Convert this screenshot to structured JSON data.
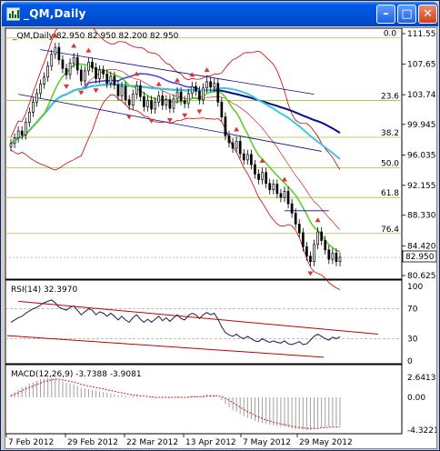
{
  "window": {
    "title": "_QM,Daily",
    "minimize_glyph": "–",
    "maximize_glyph": "□",
    "close_glyph": "✕"
  },
  "main": {
    "header": "_QM,Daily  82.950 82.950 82.200 82.950",
    "price_axis": [
      "111.550",
      "107.655",
      "103.740",
      "99.945",
      "96.035",
      "92.155",
      "88.330",
      "84.420",
      "80.625"
    ],
    "current_price": "82.950",
    "fib_labels": [
      "0.0",
      "23.6",
      "38.2",
      "50.0",
      "61.8",
      "76.4"
    ],
    "fib_levels": [
      111.0,
      103.0,
      98.3,
      94.4,
      90.6,
      86.0
    ]
  },
  "rsi": {
    "header": "RSI(14) 32.3970",
    "axis": [
      "100",
      "70",
      "30",
      "0"
    ]
  },
  "macd": {
    "header": "MACD(12,26,9) -3.7388 -3.9081",
    "axis": [
      "2.6413",
      "0.00",
      "-4.3221"
    ]
  },
  "x_axis": [
    "7 Feb 2012",
    "29 Feb 2012",
    "22 Mar 2012",
    "13 Apr 2012",
    "7 May 2012",
    "29 May 2012"
  ],
  "colors": {
    "candle": "#000000",
    "bollinger": "#cc0000",
    "ma_fast": "#5fd02a",
    "ma_mid": "#4a4ad8",
    "ma_slow_cyan": "#40c8e0",
    "ma_slow_navy": "#0a0a90",
    "fractal": "#e03030",
    "fib": "#a0c040",
    "rsi_line": "#1a1a50",
    "macd_hist": "#a0a0a0",
    "macd_signal": "#d02020"
  },
  "chart_data": [
    {
      "type": "candlestick",
      "title": "_QM,Daily",
      "header_values": {
        "open": 82.95,
        "high": 82.95,
        "low": 82.2,
        "close": 82.95
      },
      "x_ticks": [
        "7 Feb 2012",
        "29 Feb 2012",
        "22 Mar 2012",
        "13 Apr 2012",
        "7 May 2012",
        "29 May 2012"
      ],
      "ylim": [
        80.625,
        111.55
      ],
      "y_ticks": [
        111.55,
        107.655,
        103.74,
        99.945,
        96.035,
        92.155,
        88.33,
        84.42,
        80.625
      ],
      "fib_retracement": {
        "labels": [
          "0.0",
          "23.6",
          "38.2",
          "50.0",
          "61.8",
          "76.4"
        ],
        "levels": [
          111.0,
          103.0,
          98.3,
          94.4,
          90.6,
          86.0
        ]
      },
      "close": [
        97.5,
        98.2,
        99.1,
        98.6,
        100.2,
        101.5,
        102.8,
        103.9,
        105.1,
        106.0,
        107.4,
        108.9,
        109.8,
        108.2,
        107.1,
        106.3,
        107.8,
        108.5,
        106.9,
        105.5,
        106.8,
        107.9,
        107.2,
        105.8,
        106.9,
        106.4,
        105.2,
        106.1,
        105.0,
        103.6,
        104.8,
        103.1,
        102.4,
        103.8,
        104.9,
        103.5,
        102.2,
        103.0,
        101.9,
        102.8,
        103.6,
        102.4,
        103.1,
        102.0,
        103.2,
        104.1,
        103.0,
        102.6,
        103.9,
        104.8,
        104.2,
        103.1,
        104.6,
        105.4,
        104.7,
        105.2,
        102.8,
        100.9,
        98.5,
        97.6,
        96.9,
        97.8,
        96.2,
        95.4,
        96.1,
        94.8,
        93.6,
        92.9,
        93.8,
        92.4,
        91.6,
        92.3,
        91.1,
        90.6,
        91.4,
        89.8,
        88.6,
        87.2,
        86.1,
        84.3,
        83.1,
        82.4,
        84.6,
        86.2,
        85.1,
        83.9,
        82.7,
        83.5,
        82.4,
        82.95
      ],
      "current": 82.95
    },
    {
      "type": "line",
      "title": "RSI(14) 32.3970",
      "ylim": [
        0,
        100
      ],
      "y_ticks": [
        100,
        70,
        30,
        0
      ],
      "values": [
        52,
        55,
        58,
        60,
        64,
        67,
        70,
        72,
        75,
        78,
        80,
        82,
        78,
        72,
        70,
        68,
        72,
        74,
        68,
        62,
        66,
        70,
        68,
        62,
        66,
        64,
        60,
        64,
        60,
        55,
        60,
        55,
        52,
        58,
        62,
        56,
        52,
        56,
        52,
        56,
        60,
        54,
        58,
        53,
        58,
        62,
        57,
        55,
        61,
        64,
        62,
        57,
        62,
        65,
        62,
        64,
        56,
        46,
        38,
        35,
        33,
        36,
        32,
        30,
        33,
        30,
        27,
        26,
        30,
        27,
        25,
        27,
        25,
        24,
        27,
        23,
        22,
        24,
        26,
        22,
        23,
        28,
        33,
        36,
        33,
        30,
        28,
        32,
        30,
        32.4
      ],
      "current": 32.397
    },
    {
      "type": "bar",
      "title": "MACD(12,26,9) -3.7388 -3.9081",
      "ylim": [
        -4.3221,
        2.6413
      ],
      "y_ticks": [
        2.6413,
        0.0,
        -4.3221
      ],
      "histogram": [
        0.4,
        0.7,
        1.0,
        1.3,
        1.5,
        1.8,
        2.0,
        2.2,
        2.4,
        2.5,
        2.6,
        2.6,
        2.5,
        2.3,
        2.1,
        1.9,
        1.8,
        1.7,
        1.5,
        1.3,
        1.2,
        1.1,
        1.0,
        0.9,
        0.8,
        0.7,
        0.6,
        0.5,
        0.4,
        0.3,
        0.3,
        0.2,
        0.1,
        0.1,
        0.2,
        0.1,
        0.0,
        0.0,
        -0.1,
        -0.1,
        0.0,
        -0.1,
        0.0,
        -0.1,
        0.0,
        0.1,
        0.1,
        0.0,
        0.1,
        0.2,
        0.2,
        0.1,
        0.2,
        0.3,
        0.3,
        0.3,
        0.0,
        -0.4,
        -0.9,
        -1.3,
        -1.7,
        -1.9,
        -2.2,
        -2.5,
        -2.7,
        -2.9,
        -3.1,
        -3.3,
        -3.4,
        -3.5,
        -3.6,
        -3.7,
        -3.8,
        -3.9,
        -3.9,
        -4.0,
        -4.1,
        -4.2,
        -4.2,
        -4.3,
        -4.3,
        -4.3,
        -4.2,
        -4.1,
        -4.0,
        -3.95,
        -3.9,
        -3.85,
        -3.8,
        -3.74
      ],
      "signal": [
        0.2,
        0.4,
        0.6,
        0.9,
        1.1,
        1.3,
        1.5,
        1.7,
        1.9,
        2.1,
        2.2,
        2.3,
        2.4,
        2.4,
        2.3,
        2.2,
        2.1,
        2.0,
        1.9,
        1.7,
        1.6,
        1.5,
        1.4,
        1.3,
        1.2,
        1.1,
        1.0,
        0.9,
        0.8,
        0.7,
        0.6,
        0.5,
        0.4,
        0.3,
        0.3,
        0.2,
        0.2,
        0.1,
        0.1,
        0.0,
        0.0,
        0.0,
        0.0,
        0.0,
        0.0,
        0.0,
        0.0,
        0.0,
        0.0,
        0.1,
        0.1,
        0.1,
        0.1,
        0.2,
        0.2,
        0.2,
        0.2,
        0.1,
        -0.1,
        -0.4,
        -0.7,
        -1.0,
        -1.3,
        -1.6,
        -1.9,
        -2.1,
        -2.4,
        -2.6,
        -2.8,
        -3.0,
        -3.1,
        -3.3,
        -3.4,
        -3.5,
        -3.6,
        -3.7,
        -3.8,
        -3.9,
        -4.0,
        -4.0,
        -4.1,
        -4.1,
        -4.1,
        -4.1,
        -4.0,
        -4.0,
        -3.95,
        -3.93,
        -3.92,
        -3.91
      ]
    }
  ]
}
